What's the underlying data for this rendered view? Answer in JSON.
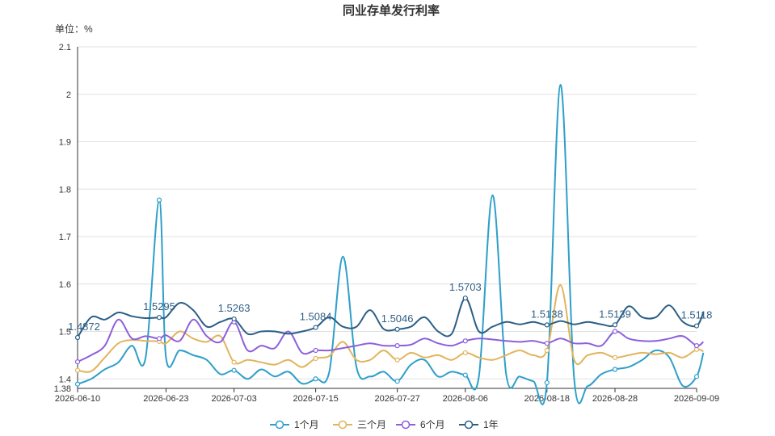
{
  "chart_data": {
    "type": "line",
    "title": "同业存单发行利率",
    "unit_label": "单位：%",
    "ylim": [
      1.38,
      2.1
    ],
    "y_ticks": [
      "1.38",
      "1.4",
      "1.5",
      "1.6",
      "1.7",
      "1.8",
      "1.9",
      "2",
      "2.1"
    ],
    "x_ticks": [
      "2026-06-10",
      "2026-06-23",
      "2026-07-03",
      "2026-07-15",
      "2026-07-27",
      "2026-08-06",
      "2026-08-18",
      "2026-08-28",
      "2026-09-09"
    ],
    "legend_position": "bottom",
    "grid": true,
    "x": [
      "06-10",
      "06-12",
      "06-14",
      "06-16",
      "06-18",
      "06-20",
      "06-22",
      "06-23",
      "06-25",
      "06-27",
      "06-29",
      "07-01",
      "07-03",
      "07-05",
      "07-07",
      "07-09",
      "07-11",
      "07-13",
      "07-15",
      "07-17",
      "07-19",
      "07-21",
      "07-23",
      "07-25",
      "07-27",
      "07-29",
      "07-31",
      "08-02",
      "08-04",
      "08-06",
      "08-08",
      "08-10",
      "08-12",
      "08-14",
      "08-16",
      "08-18",
      "08-20",
      "08-22",
      "08-24",
      "08-26",
      "08-28",
      "08-30",
      "09-01",
      "09-03",
      "09-05",
      "09-07",
      "09-09",
      "09-10"
    ],
    "series": [
      {
        "name": "1个月",
        "color": "#2e9fc9",
        "values": [
          1.389,
          1.4,
          1.42,
          1.435,
          1.47,
          1.445,
          1.777,
          1.445,
          1.46,
          1.45,
          1.44,
          1.41,
          1.418,
          1.4,
          1.42,
          1.405,
          1.415,
          1.39,
          1.4,
          1.415,
          1.658,
          1.425,
          1.405,
          1.415,
          1.395,
          1.43,
          1.44,
          1.405,
          1.415,
          1.408,
          1.405,
          1.787,
          1.41,
          1.405,
          1.395,
          1.392,
          2.02,
          1.4,
          1.385,
          1.41,
          1.42,
          1.425,
          1.44,
          1.46,
          1.445,
          1.385,
          1.405,
          1.455
        ]
      },
      {
        "name": "三个月",
        "color": "#e2b45d",
        "values": [
          1.418,
          1.416,
          1.445,
          1.475,
          1.482,
          1.48,
          1.479,
          1.475,
          1.5,
          1.485,
          1.478,
          1.49,
          1.435,
          1.44,
          1.435,
          1.43,
          1.44,
          1.425,
          1.443,
          1.448,
          1.478,
          1.44,
          1.44,
          1.46,
          1.44,
          1.455,
          1.445,
          1.45,
          1.44,
          1.455,
          1.445,
          1.44,
          1.45,
          1.46,
          1.45,
          1.46,
          1.598,
          1.44,
          1.45,
          1.455,
          1.445,
          1.45,
          1.455,
          1.452,
          1.455,
          1.445,
          1.462,
          1.458
        ]
      },
      {
        "name": "6个月",
        "color": "#8d5fdc",
        "values": [
          1.436,
          1.45,
          1.47,
          1.525,
          1.485,
          1.49,
          1.485,
          1.492,
          1.48,
          1.525,
          1.49,
          1.478,
          1.52,
          1.46,
          1.47,
          1.465,
          1.5,
          1.455,
          1.46,
          1.46,
          1.465,
          1.47,
          1.475,
          1.47,
          1.47,
          1.472,
          1.485,
          1.475,
          1.47,
          1.48,
          1.485,
          1.483,
          1.48,
          1.478,
          1.48,
          1.475,
          1.485,
          1.475,
          1.475,
          1.47,
          1.5,
          1.485,
          1.48,
          1.48,
          1.485,
          1.49,
          1.47,
          1.478
        ]
      },
      {
        "name": "1年",
        "color": "#2b5f86",
        "values": [
          1.4872,
          1.53,
          1.525,
          1.54,
          1.532,
          1.528,
          1.5295,
          1.53,
          1.56,
          1.545,
          1.51,
          1.52,
          1.5263,
          1.495,
          1.5,
          1.5,
          1.495,
          1.5,
          1.5084,
          1.53,
          1.51,
          1.51,
          1.545,
          1.505,
          1.5046,
          1.51,
          1.53,
          1.5,
          1.495,
          1.5703,
          1.5,
          1.51,
          1.52,
          1.515,
          1.52,
          1.5138,
          1.522,
          1.515,
          1.52,
          1.515,
          1.5139,
          1.553,
          1.53,
          1.53,
          1.555,
          1.52,
          1.5118,
          1.54
        ]
      }
    ],
    "data_labels": [
      {
        "series": "1年",
        "index": 0,
        "text": "1.4872"
      },
      {
        "series": "1年",
        "index": 6,
        "text": "1.5295"
      },
      {
        "series": "1年",
        "index": 12,
        "text": "1.5263"
      },
      {
        "series": "1年",
        "index": 18,
        "text": "1.5084"
      },
      {
        "series": "1年",
        "index": 24,
        "text": "1.5046"
      },
      {
        "series": "1年",
        "index": 29,
        "text": "1.5703"
      },
      {
        "series": "1年",
        "index": 35,
        "text": "1.5138"
      },
      {
        "series": "1年",
        "index": 40,
        "text": "1.5139"
      },
      {
        "series": "1年",
        "index": 46,
        "text": "1.5118"
      }
    ]
  }
}
